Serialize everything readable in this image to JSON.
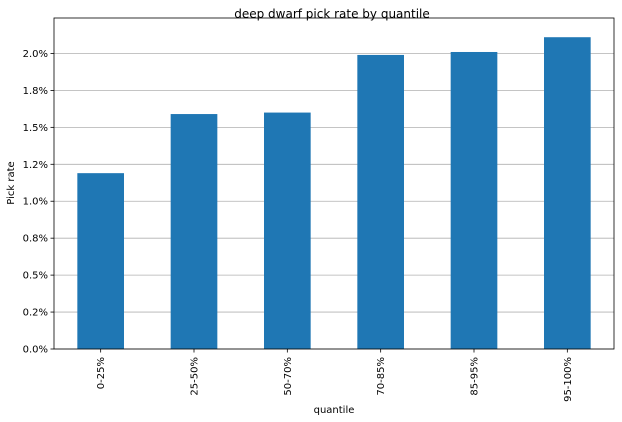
{
  "chart_data": {
    "type": "bar",
    "title": "deep dwarf pick rate by quantile",
    "xlabel": "quantile",
    "ylabel": "Pick rate",
    "categories": [
      "0-25%",
      "25-50%",
      "50-70%",
      "70-85%",
      "85-95%",
      "95-100%"
    ],
    "values": [
      1.19,
      1.59,
      1.6,
      1.99,
      2.01,
      2.11
    ],
    "ylim": [
      0,
      2.24
    ],
    "yticks": [
      0.0,
      0.25,
      0.5,
      0.75,
      1.0,
      1.25,
      1.5,
      1.75,
      2.0
    ],
    "ytick_labels": [
      "0.0%",
      "0.2%",
      "0.5%",
      "0.8%",
      "1.0%",
      "1.2%",
      "1.5%",
      "1.8%",
      "2.0%"
    ],
    "grid": "y",
    "bar_color": "#1f77b4"
  }
}
